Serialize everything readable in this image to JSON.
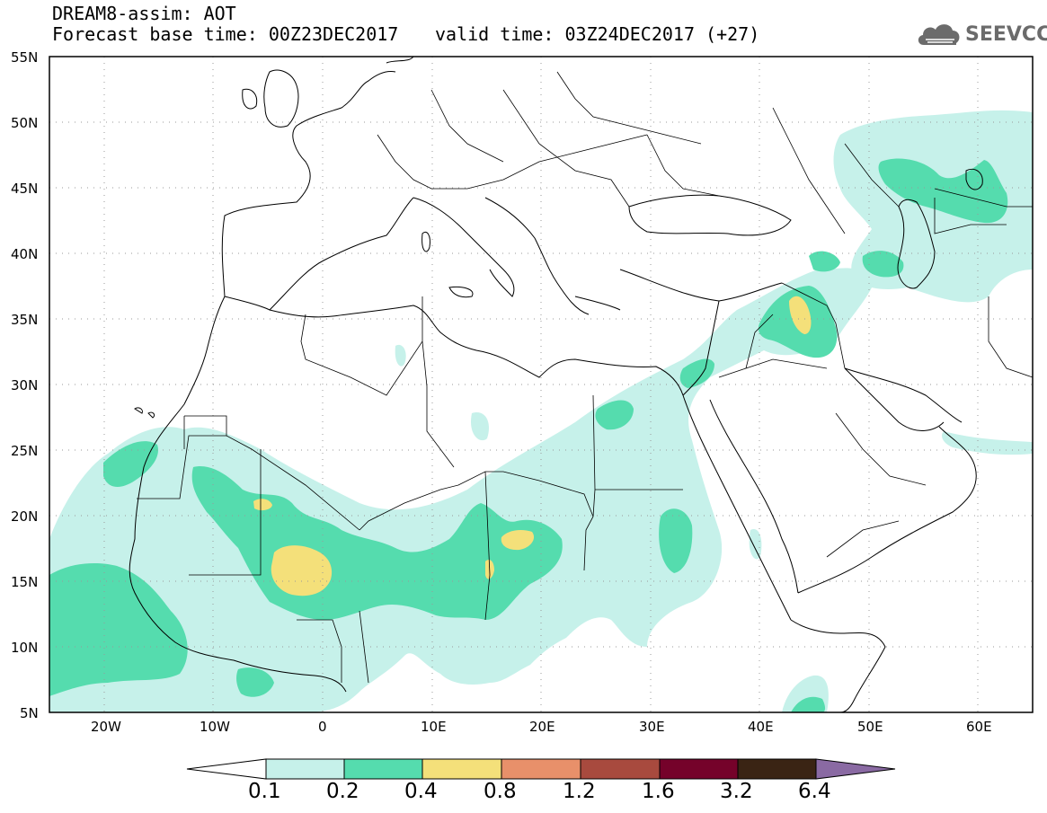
{
  "header": {
    "title": "DREAM8-assim: AOT",
    "base_time": "Forecast base time: 00Z23DEC2017",
    "valid_time": "valid time: 03Z24DEC2017 (+27)",
    "logo_text": "SEEVCCC",
    "logo_icon": "cloud-icon"
  },
  "map": {
    "lat_labels": [
      "55N",
      "50N",
      "45N",
      "40N",
      "35N",
      "30N",
      "25N",
      "20N",
      "15N",
      "10N",
      "5N"
    ],
    "lon_labels": [
      "20W",
      "10W",
      "0",
      "10E",
      "20E",
      "30E",
      "40E",
      "50E",
      "60E"
    ],
    "gridlines": "dotted"
  },
  "colorbar": {
    "labels": [
      "0.1",
      "0.2",
      "0.4",
      "0.8",
      "1.2",
      "1.6",
      "3.2",
      "6.4"
    ],
    "colors": [
      "#ffffff",
      "#c6f1ea",
      "#55dcae",
      "#f4e07a",
      "#e8906a",
      "#a84a3e",
      "#75022a",
      "#3a2414",
      "#8a6aa3"
    ]
  }
}
